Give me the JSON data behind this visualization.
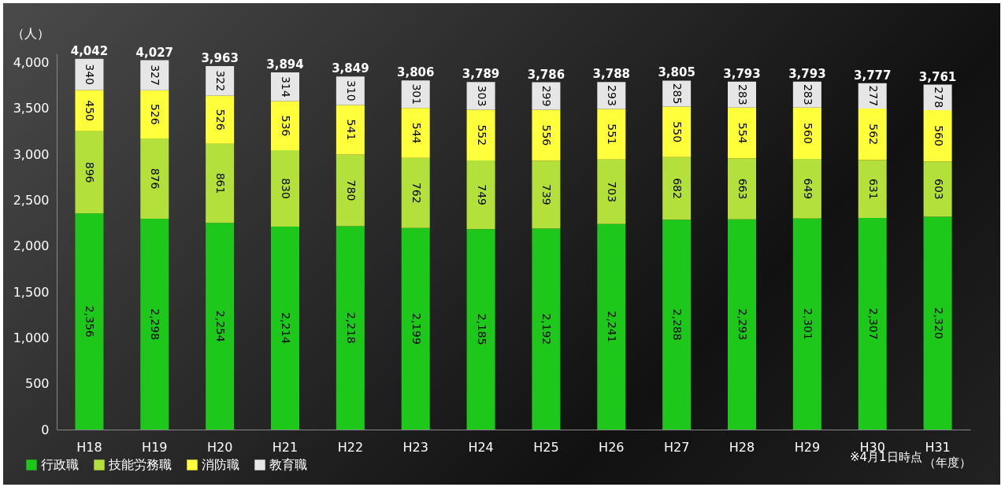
{
  "chart_data": {
    "type": "bar",
    "stacked": true,
    "ylabel": "（人）",
    "xlabel": "（年度）",
    "categories": [
      "H18",
      "H19",
      "H20",
      "H21",
      "H22",
      "H23",
      "H24",
      "H25",
      "H26",
      "H27",
      "H28",
      "H29",
      "H30",
      "H31"
    ],
    "series": [
      {
        "name": "行政職",
        "color": "#1ec81a",
        "values": [
          2356,
          2298,
          2254,
          2214,
          2218,
          2199,
          2185,
          2192,
          2241,
          2288,
          2293,
          2301,
          2307,
          2320
        ],
        "value_labels": [
          "2,356",
          "2,298",
          "2,254",
          "2,214",
          "2,218",
          "2,199",
          "2,185",
          "2,192",
          "2,241",
          "2,288",
          "2,293",
          "2,301",
          "2,307",
          "2,320"
        ]
      },
      {
        "name": "技能労務職",
        "color": "#b4e03c",
        "values": [
          896,
          876,
          861,
          830,
          780,
          762,
          749,
          739,
          703,
          682,
          663,
          649,
          631,
          603
        ]
      },
      {
        "name": "消防職",
        "color": "#ffff3c",
        "values": [
          450,
          526,
          526,
          536,
          541,
          544,
          552,
          556,
          551,
          550,
          554,
          560,
          562,
          560
        ]
      },
      {
        "name": "教育職",
        "color": "#e6e6e6",
        "values": [
          340,
          327,
          322,
          314,
          310,
          301,
          303,
          299,
          293,
          285,
          283,
          283,
          277,
          278
        ]
      }
    ],
    "totals": [
      "4,042",
      "4,027",
      "3,963",
      "3,894",
      "3,849",
      "3,806",
      "3,789",
      "3,786",
      "3,788",
      "3,805",
      "3,793",
      "3,793",
      "3,777",
      "3,761"
    ],
    "data_labels": true,
    "ylim": [
      0,
      4100
    ],
    "yticks": [
      0,
      500,
      {
        "value": 1000,
        "label": "1,000"
      },
      {
        "value": 1500,
        "label": "1,500"
      },
      {
        "value": 2000,
        "label": "2,000"
      },
      {
        "value": 2500,
        "label": "2,500"
      },
      {
        "value": 3000,
        "label": "3,000"
      },
      {
        "value": 3500,
        "label": "3,500"
      },
      {
        "value": 4000,
        "label": "4,000"
      }
    ],
    "grid": false,
    "legend": "bottom left",
    "annotations": [
      "※4月1日時点"
    ]
  }
}
